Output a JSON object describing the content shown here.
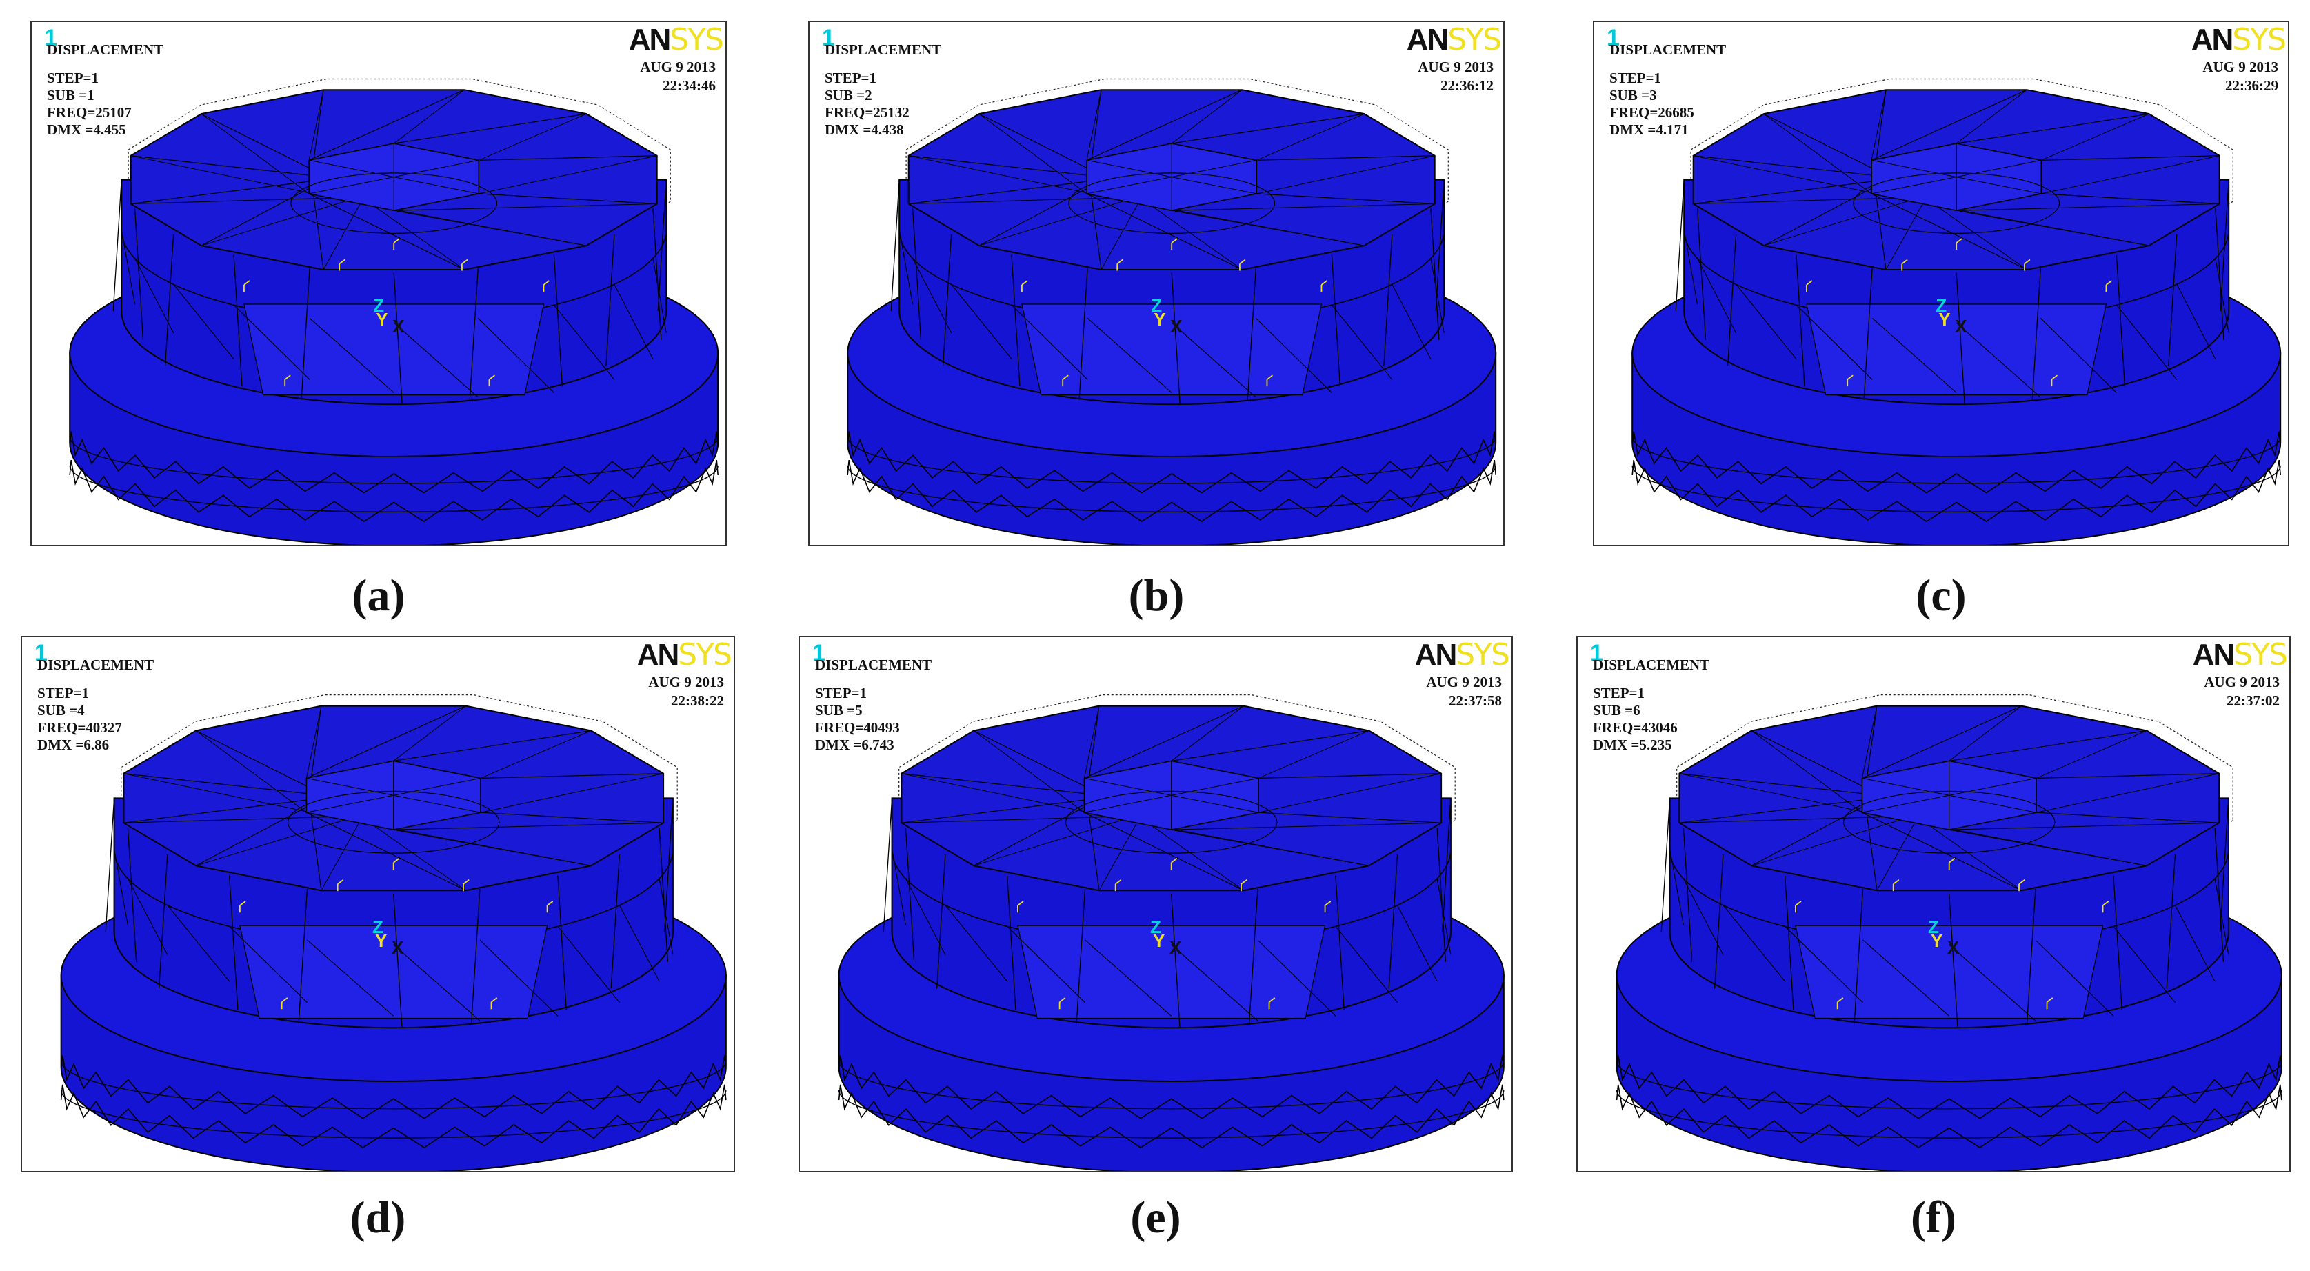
{
  "figure": {
    "panels": [
      {
        "id": "a",
        "caption_letter": "a",
        "window_number": "1",
        "result_type": "DISPLACEMENT",
        "step": "STEP=1",
        "sub": "SUB =1",
        "freq": "FREQ=25107",
        "dmx": "DMX =4.455",
        "date": "AUG  9 2013",
        "time": "22:34:46",
        "logo_dark": "AN",
        "logo_light": "SYS",
        "axis_z": "Z",
        "axis_y": "Y",
        "axis_x": "X"
      },
      {
        "id": "b",
        "caption_letter": "b",
        "window_number": "1",
        "result_type": "DISPLACEMENT",
        "step": "STEP=1",
        "sub": "SUB =2",
        "freq": "FREQ=25132",
        "dmx": "DMX =4.438",
        "date": "AUG  9 2013",
        "time": "22:36:12",
        "logo_dark": "AN",
        "logo_light": "SYS",
        "axis_z": "Z",
        "axis_y": "Y",
        "axis_x": "X"
      },
      {
        "id": "c",
        "caption_letter": "c",
        "window_number": "1",
        "result_type": "DISPLACEMENT",
        "step": "STEP=1",
        "sub": "SUB =3",
        "freq": "FREQ=26685",
        "dmx": "DMX =4.171",
        "date": "AUG  9 2013",
        "time": "22:36:29",
        "logo_dark": "AN",
        "logo_light": "SYS",
        "axis_z": "Z",
        "axis_y": "Y",
        "axis_x": "X"
      },
      {
        "id": "d",
        "caption_letter": "d",
        "window_number": "1",
        "result_type": "DISPLACEMENT",
        "step": "STEP=1",
        "sub": "SUB =4",
        "freq": "FREQ=40327",
        "dmx": "DMX =6.86",
        "date": "AUG  9 2013",
        "time": "22:38:22",
        "logo_dark": "AN",
        "logo_light": "SYS",
        "axis_z": "Z",
        "axis_y": "Y",
        "axis_x": "X"
      },
      {
        "id": "e",
        "caption_letter": "e",
        "window_number": "1",
        "result_type": "DISPLACEMENT",
        "step": "STEP=1",
        "sub": "SUB =5",
        "freq": "FREQ=40493",
        "dmx": "DMX =6.743",
        "date": "AUG  9 2013",
        "time": "22:37:58",
        "logo_dark": "AN",
        "logo_light": "SYS",
        "axis_z": "Z",
        "axis_y": "Y",
        "axis_x": "X"
      },
      {
        "id": "f",
        "caption_letter": "f",
        "window_number": "1",
        "result_type": "DISPLACEMENT",
        "step": "STEP=1",
        "sub": "SUB =6",
        "freq": "FREQ=43046",
        "dmx": "DMX =5.235",
        "date": "AUG  9 2013",
        "time": "22:37:02",
        "logo_dark": "AN",
        "logo_light": "SYS",
        "axis_z": "Z",
        "axis_y": "Y",
        "axis_x": "X"
      }
    ],
    "colors": {
      "mesh_fill": "#1414d2",
      "mesh_dark": "#0a0a96",
      "mesh_lines": "#000000",
      "logo_light": "#f0e020",
      "window_number": "#00c8d8"
    }
  }
}
